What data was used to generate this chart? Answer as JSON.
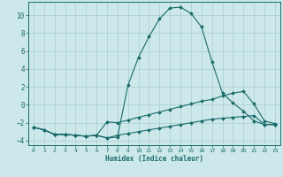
{
  "xlabel": "Humidex (Indice chaleur)",
  "background_color": "#cce8ea",
  "grid_color": "#aacdd0",
  "line_color": "#1a6b6b",
  "xlim": [
    -0.5,
    23.5
  ],
  "ylim": [
    -4.5,
    11.5
  ],
  "xticks": [
    0,
    1,
    2,
    3,
    4,
    5,
    6,
    7,
    8,
    9,
    10,
    11,
    12,
    13,
    14,
    15,
    16,
    17,
    18,
    19,
    20,
    21,
    22,
    23
  ],
  "yticks": [
    -4,
    -2,
    0,
    2,
    4,
    6,
    8,
    10
  ],
  "line1_x": [
    0,
    1,
    2,
    3,
    4,
    5,
    6,
    7,
    8,
    9,
    10,
    11,
    12,
    13,
    14,
    15,
    16,
    17,
    18,
    19,
    20,
    21,
    22,
    23
  ],
  "line1_y": [
    -2.5,
    -2.8,
    -3.3,
    -3.3,
    -3.4,
    -3.5,
    -3.4,
    -3.7,
    -3.6,
    2.2,
    5.3,
    7.6,
    9.6,
    10.8,
    10.9,
    10.2,
    8.7,
    4.8,
    1.3,
    0.2,
    -0.7,
    -1.8,
    -2.2,
    -2.2
  ],
  "line2_x": [
    0,
    1,
    2,
    3,
    4,
    5,
    6,
    7,
    8,
    9,
    10,
    11,
    12,
    13,
    14,
    15,
    16,
    17,
    18,
    19,
    20,
    21,
    22,
    23
  ],
  "line2_y": [
    -2.5,
    -2.8,
    -3.3,
    -3.3,
    -3.4,
    -3.5,
    -3.4,
    -1.9,
    -2.0,
    -1.7,
    -1.4,
    -1.1,
    -0.8,
    -0.5,
    -0.2,
    0.1,
    0.4,
    0.6,
    1.0,
    1.3,
    1.5,
    0.1,
    -1.8,
    -2.1
  ],
  "line3_x": [
    0,
    1,
    2,
    3,
    4,
    5,
    6,
    7,
    8,
    9,
    10,
    11,
    12,
    13,
    14,
    15,
    16,
    17,
    18,
    19,
    20,
    21,
    22,
    23
  ],
  "line3_y": [
    -2.5,
    -2.8,
    -3.3,
    -3.3,
    -3.4,
    -3.5,
    -3.4,
    -3.7,
    -3.4,
    -3.2,
    -3.0,
    -2.8,
    -2.6,
    -2.4,
    -2.2,
    -2.0,
    -1.8,
    -1.6,
    -1.5,
    -1.4,
    -1.3,
    -1.2,
    -2.2,
    -2.2
  ]
}
